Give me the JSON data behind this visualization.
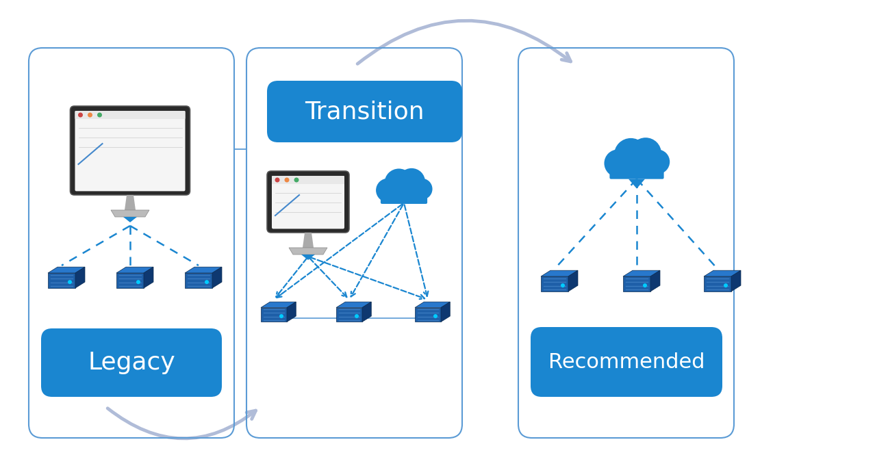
{
  "background_color": "#ffffff",
  "box_color": "#1a86d0",
  "box_outline_color": "#5b9bd5",
  "box_text_color": "#ffffff",
  "arrow_color": "#b0bcd8",
  "dashed_line_color": "#1a86d0",
  "legacy_label": "Legacy",
  "transition_label": "Transition",
  "recommended_label": "Recommended",
  "server_front": "#1e5fa8",
  "server_top": "#2878cc",
  "server_right": "#0e3870",
  "server_stripe": "#0af",
  "cloud_color": "#1a86d0",
  "cloud_dark_stroke": "#0d5a9e",
  "monitor_bezel": "#2a2a2a",
  "monitor_screen_bg": "#f5f5f5",
  "monitor_stand": "#aaaaaa",
  "monitor_stand_base": "#bbbbbb"
}
